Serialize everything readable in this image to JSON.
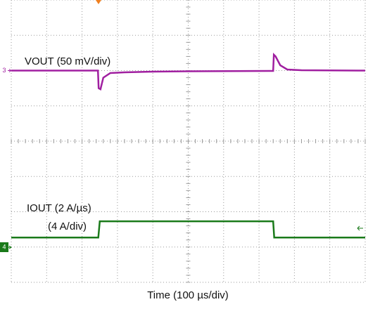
{
  "chart_data": {
    "type": "line",
    "xlim": [
      0,
      10
    ],
    "ylim": [
      0,
      8
    ],
    "grid": true,
    "x_label": "Time (100 µs/div)",
    "series": [
      {
        "name": "VOUT (50 mV/div)",
        "color": "#a01fa0",
        "channel": "3",
        "x": [
          0,
          2.45,
          2.47,
          2.52,
          2.6,
          2.8,
          3.2,
          4,
          5,
          7.4,
          7.42,
          7.47,
          7.6,
          7.8,
          8.2,
          10
        ],
        "values": [
          6.0,
          6.0,
          5.5,
          5.47,
          5.8,
          5.93,
          5.95,
          5.97,
          5.98,
          5.99,
          6.45,
          6.4,
          6.15,
          6.03,
          6.01,
          6.0
        ]
      },
      {
        "name": "IOUT (2 A/µs)",
        "subname": "(4 A/div)",
        "color": "#1a7a1a",
        "channel": "4",
        "x": [
          0,
          2.46,
          2.5,
          7.4,
          7.43,
          10
        ],
        "values": [
          1.27,
          1.27,
          1.73,
          1.73,
          1.27,
          1.27
        ]
      }
    ]
  }
}
